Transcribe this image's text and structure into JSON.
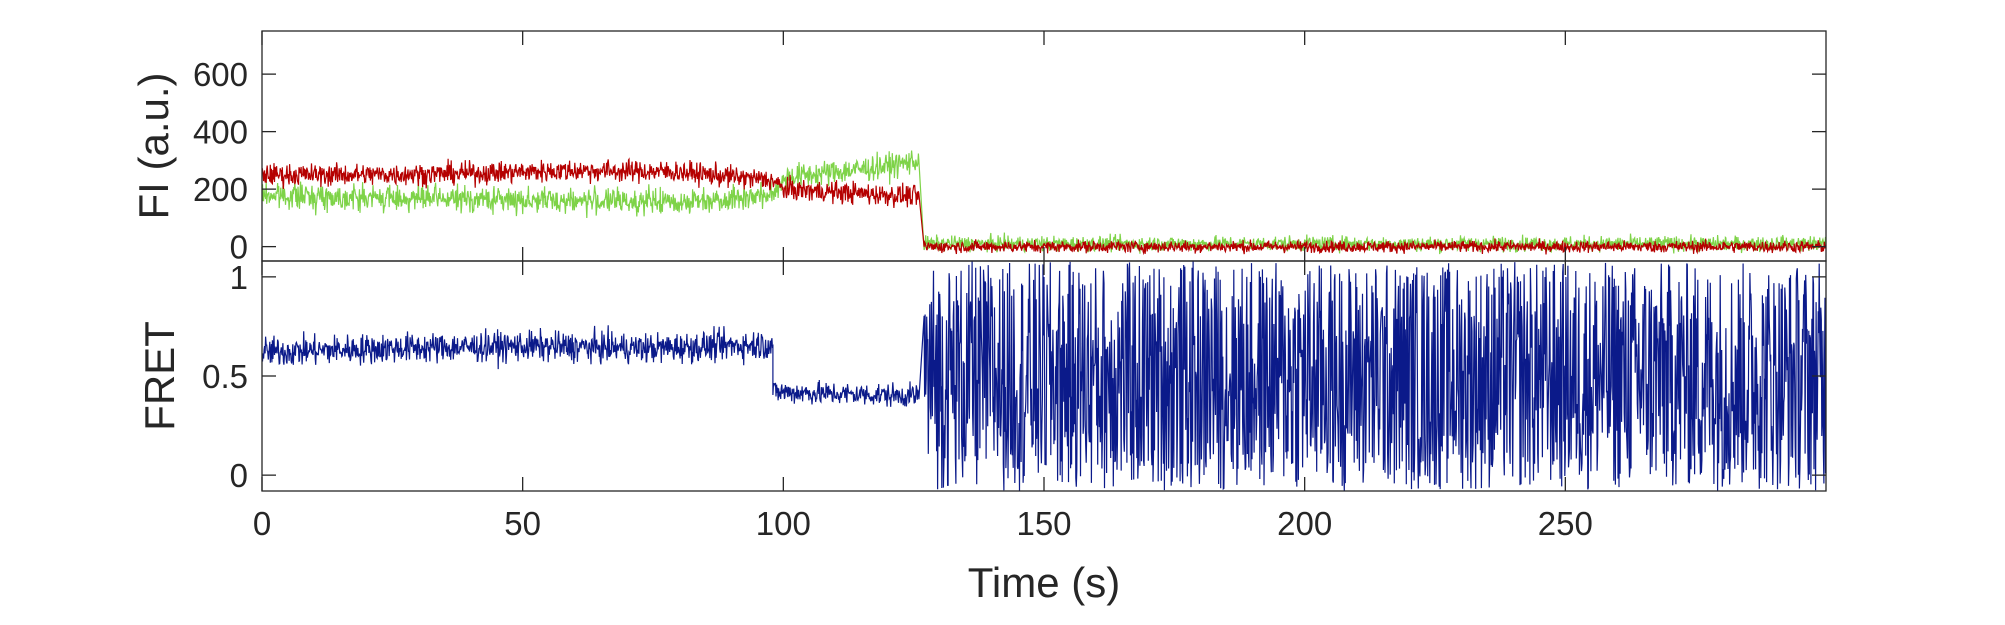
{
  "chart_data": [
    {
      "type": "line",
      "ylabel": "FI (a.u.)",
      "xlim": [
        0,
        300
      ],
      "ylim": [
        -50,
        750
      ],
      "yticks": [
        0,
        200,
        400,
        600
      ],
      "y_tick_labels": [
        "0",
        "200",
        "400",
        "600"
      ],
      "grid": false,
      "x_tick_labels_shown": false,
      "series": [
        {
          "color": "#7ed348",
          "segments": [
            {
              "x": [
                0,
                20,
                40,
                60,
                80,
                98,
                100,
                110,
                120,
                126
              ],
              "y": [
                180,
                170,
                165,
                160,
                155,
                180,
                240,
                260,
                280,
                300
              ],
              "noise_amplitude": 75
            },
            {
              "x": [
                127,
                150,
                200,
                250,
                300
              ],
              "y": [
                10,
                10,
                10,
                10,
                10
              ],
              "noise_amplitude": 45
            }
          ]
        },
        {
          "color": "#b50000",
          "segments": [
            {
              "x": [
                0,
                20,
                40,
                60,
                80,
                98,
                100,
                110,
                120,
                126
              ],
              "y": [
                250,
                250,
                255,
                265,
                260,
                230,
                200,
                190,
                180,
                175
              ],
              "noise_amplitude": 65
            },
            {
              "x": [
                127,
                150,
                200,
                250,
                300
              ],
              "y": [
                0,
                0,
                0,
                0,
                0
              ],
              "noise_amplitude": 35
            }
          ]
        }
      ]
    },
    {
      "type": "line",
      "xlabel": "Time (s)",
      "ylabel": "FRET",
      "xlim": [
        0,
        300
      ],
      "ylim": [
        -0.08,
        1.08
      ],
      "xticks": [
        0,
        50,
        100,
        150,
        200,
        250
      ],
      "x_tick_labels": [
        "0",
        "50",
        "100",
        "150",
        "200",
        "250"
      ],
      "yticks": [
        0,
        0.5,
        1
      ],
      "y_tick_labels": [
        "0",
        "0.5",
        "1"
      ],
      "grid": false,
      "series": [
        {
          "color": "#0b1a8a",
          "segments": [
            {
              "x": [
                0,
                25,
                50,
                75,
                98
              ],
              "y": [
                0.62,
                0.64,
                0.65,
                0.64,
                0.66
              ],
              "noise_amplitude": 0.13,
              "kind": "noisy"
            },
            {
              "x": [
                98,
                110,
                126
              ],
              "y": [
                0.42,
                0.41,
                0.4
              ],
              "noise_amplitude": 0.1,
              "kind": "noisy"
            },
            {
              "x": [
                127,
                300
              ],
              "y": [
                -0.08,
                1.08
              ],
              "kind": "random-full-range"
            }
          ]
        }
      ]
    }
  ]
}
